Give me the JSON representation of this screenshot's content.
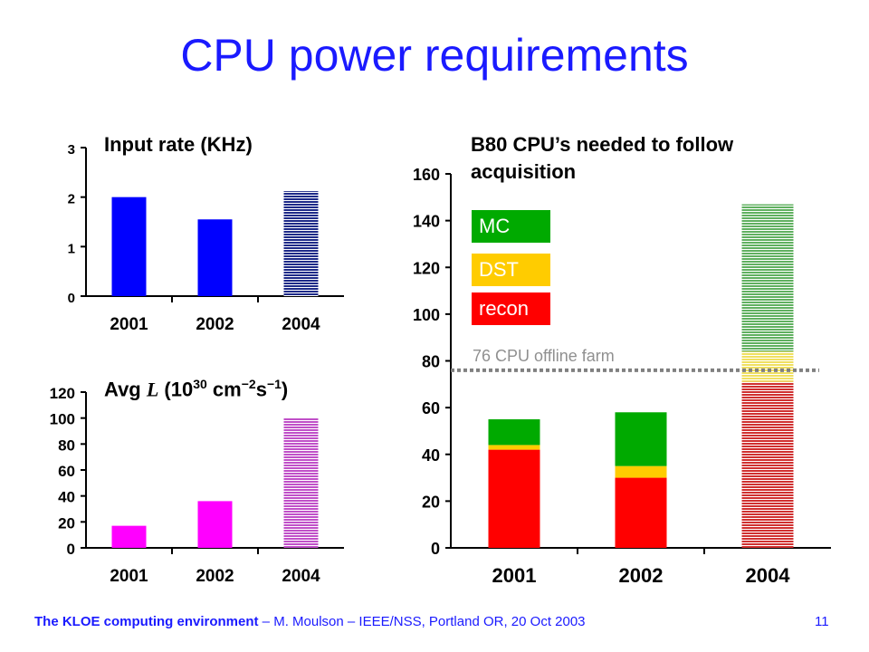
{
  "slide": {
    "title": "CPU power requirements",
    "footer_bold": "The KLOE computing environment",
    "footer_rest": " – M. Moulson – IEEE/NSS, Portland OR, 20 Oct 2003",
    "page_number": "11"
  },
  "chart_data": [
    {
      "id": "input-rate",
      "type": "bar",
      "title": "Input rate (KHz)",
      "categories": [
        "2001",
        "2002",
        "2004"
      ],
      "values": [
        2.0,
        1.55,
        2.12
      ],
      "ylim": [
        0,
        3
      ],
      "yticks": [
        "0",
        "1",
        "2",
        "3"
      ],
      "colors": [
        "#0000ff",
        "#0000ff",
        "#1e2a88"
      ],
      "hatched": [
        false,
        false,
        true
      ]
    },
    {
      "id": "luminosity",
      "type": "bar",
      "title_prefix": "Avg ",
      "title_symbol": "L",
      "title_open": " (10",
      "title_exp1": "30",
      "title_mid": " cm",
      "title_exp2": "−2",
      "title_s": "s",
      "title_exp3": "−1",
      "title_close": ")",
      "categories": [
        "2001",
        "2002",
        "2004"
      ],
      "values": [
        17,
        36,
        100
      ],
      "ylim": [
        0,
        120
      ],
      "yticks": [
        "0",
        "20",
        "40",
        "60",
        "80",
        "100",
        "120"
      ],
      "colors": [
        "#ff00ff",
        "#ff00ff",
        "#c050c8"
      ],
      "hatched": [
        false,
        false,
        true
      ]
    },
    {
      "id": "cpus",
      "type": "bar",
      "stacked": true,
      "title": "B80 CPU’s needed to follow acquisition",
      "categories": [
        "2001",
        "2002",
        "2004"
      ],
      "ylim": [
        0,
        160
      ],
      "yticks": [
        "0",
        "20",
        "40",
        "60",
        "80",
        "100",
        "120",
        "140",
        "160"
      ],
      "series": [
        {
          "name": "recon",
          "color": "#ff0000",
          "values": [
            42,
            30,
            71
          ]
        },
        {
          "name": "DST",
          "color": "#ffcc00",
          "values": [
            2,
            5,
            13
          ]
        },
        {
          "name": "MC",
          "color": "#00aa00",
          "values": [
            11,
            23,
            63
          ]
        }
      ],
      "hatched": [
        false,
        false,
        true
      ],
      "reference_line": {
        "value": 76,
        "label": "76 CPU offline farm"
      }
    }
  ]
}
